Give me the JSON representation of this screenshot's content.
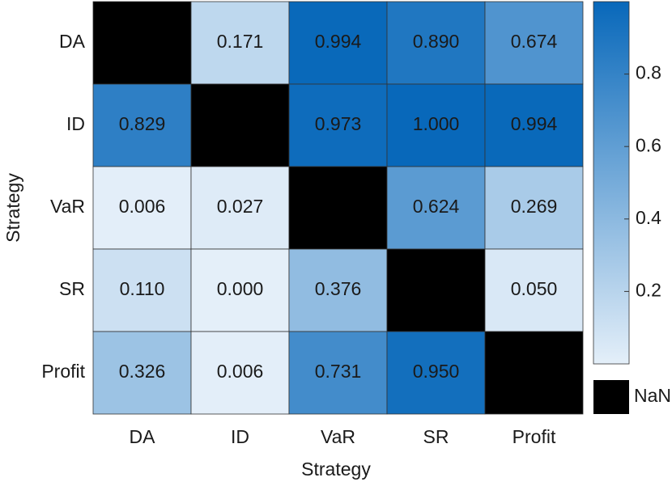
{
  "chart_data": {
    "type": "heatmap",
    "x_label": "Strategy",
    "y_label": "Strategy",
    "categories": [
      "DA",
      "ID",
      "VaR",
      "SR",
      "Profit"
    ],
    "rows": [
      "DA",
      "ID",
      "VaR",
      "SR",
      "Profit"
    ],
    "values": [
      [
        null,
        0.171,
        0.994,
        0.89,
        0.674
      ],
      [
        0.829,
        null,
        0.973,
        1,
        0.994
      ],
      [
        0.006,
        0.027,
        null,
        0.624,
        0.269
      ],
      [
        0.11,
        0,
        0.376,
        null,
        0.05
      ],
      [
        0.326,
        0.006,
        0.731,
        0.95,
        null
      ]
    ],
    "value_labels": [
      [
        null,
        "0.171",
        "0.994",
        "0.890",
        "0.674"
      ],
      [
        "0.829",
        null,
        "0.973",
        "1.000",
        "0.994"
      ],
      [
        "0.006",
        "0.027",
        null,
        "0.624",
        "0.269"
      ],
      [
        "0.110",
        "0.000",
        "0.376",
        null,
        "0.050"
      ],
      [
        "0.326",
        "0.006",
        "0.731",
        "0.950",
        null
      ]
    ],
    "colormap": [
      "#e4eff9",
      "#0868ba"
    ],
    "nan_color": "#000000",
    "nan_label": "NaN",
    "clim": [
      0,
      1
    ],
    "cticks": [
      0.2,
      0.4,
      0.6,
      0.8
    ]
  }
}
